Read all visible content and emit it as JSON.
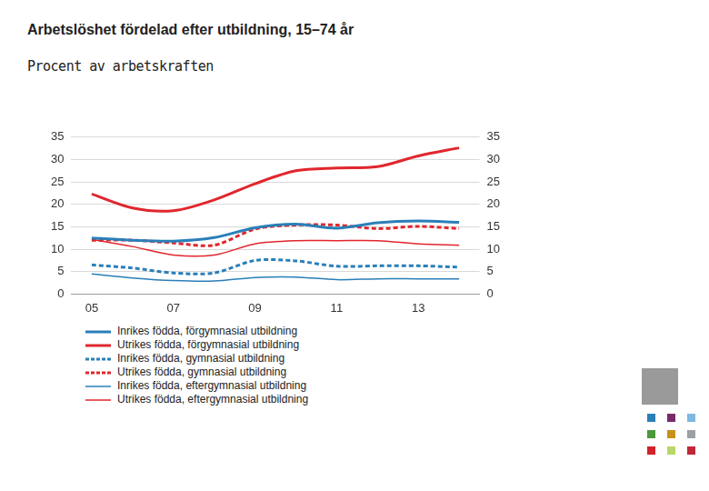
{
  "chart_data": {
    "type": "line",
    "title": "Arbetslöshet fördelad efter utbildning, 15–74 år",
    "subtitle": "Procent av arbetskraften",
    "categories": [
      "05",
      null,
      "07",
      null,
      "09",
      null,
      "11",
      null,
      "13",
      null
    ],
    "series": [
      {
        "name": "Inrikes födda, förgymnasial utbildning",
        "color": "#2a7fb8",
        "line_style": "thick",
        "values": [
          12.5,
          12.0,
          11.8,
          12.6,
          14.8,
          15.6,
          14.7,
          15.9,
          16.3,
          16.0
        ]
      },
      {
        "name": "Utrikes födda, förgymnasial utbildning",
        "color": "#e1262d",
        "line_style": "thick",
        "values": [
          22.3,
          19.2,
          18.6,
          21.0,
          24.6,
          27.5,
          28.1,
          28.4,
          30.8,
          32.6
        ]
      },
      {
        "name": "Inrikes födda, gymnasial utbildning",
        "color": "#2a7fb8",
        "line_style": "dashed",
        "values": [
          6.5,
          5.8,
          4.7,
          4.7,
          7.5,
          7.4,
          6.2,
          6.3,
          6.3,
          6.0
        ]
      },
      {
        "name": "Utrikes födda, gymnasial utbildning",
        "color": "#e1262d",
        "line_style": "dashed",
        "values": [
          12.0,
          12.0,
          11.4,
          10.9,
          14.5,
          15.4,
          15.4,
          14.6,
          15.1,
          14.6
        ]
      },
      {
        "name": "Inrikes födda, eftergymnasial utbildning",
        "color": "#2a7fb8",
        "line_style": "thin",
        "values": [
          4.5,
          3.6,
          3.0,
          2.9,
          3.7,
          3.8,
          3.2,
          3.4,
          3.4,
          3.4
        ]
      },
      {
        "name": "Utrikes födda, eftergymnasial utbildning",
        "color": "#e1262d",
        "line_style": "thin",
        "values": [
          12.2,
          10.6,
          8.7,
          8.7,
          11.2,
          11.9,
          11.9,
          11.9,
          11.2,
          10.9
        ]
      }
    ],
    "ylim": [
      0,
      35
    ],
    "yticks": [
      0,
      5,
      10,
      15,
      20,
      25,
      30,
      35
    ],
    "y2lim": [
      0,
      35
    ],
    "y2ticks": [
      0,
      5,
      10,
      15,
      20,
      25,
      30,
      35
    ],
    "grid": true,
    "legend": "bottom"
  }
}
